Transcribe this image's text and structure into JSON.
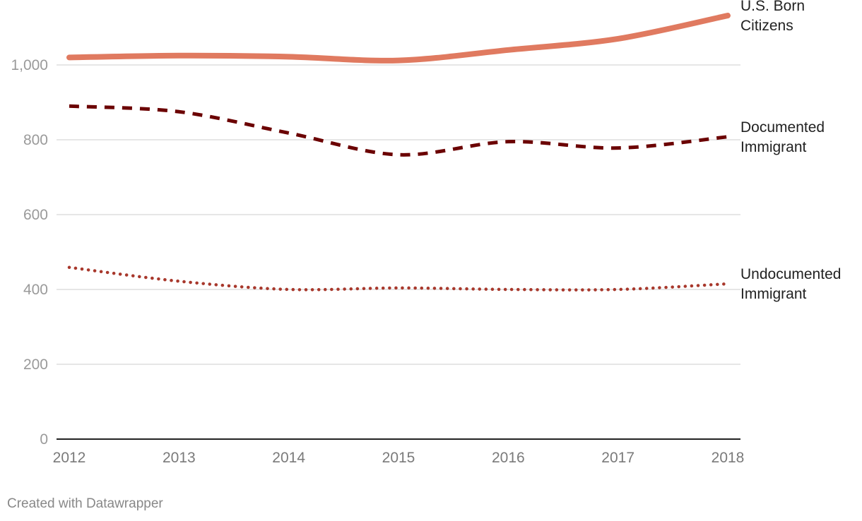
{
  "chart_data": {
    "type": "line",
    "title": "",
    "xlabel": "",
    "ylabel": "",
    "x": [
      "2012",
      "2013",
      "2014",
      "2015",
      "2016",
      "2017",
      "2018"
    ],
    "ylim": [
      0,
      1000
    ],
    "yticks": [
      0,
      200,
      400,
      600,
      800,
      1000
    ],
    "ytick_labels": [
      "0",
      "200",
      "400",
      "600",
      "800",
      "1,000"
    ],
    "grid": true,
    "legend": "inline-right",
    "series": [
      {
        "name": "U.S. Born Citizens",
        "label_lines": [
          "U.S. Born",
          "Citizens"
        ],
        "color": "#e07a60",
        "style": "solid",
        "values": [
          1020,
          1025,
          1022,
          1012,
          1040,
          1070,
          1132
        ]
      },
      {
        "name": "Documented Immigrant",
        "label_lines": [
          "Documented",
          "Immigrant"
        ],
        "color": "#6b0000",
        "style": "dashed",
        "values": [
          890,
          875,
          818,
          760,
          795,
          778,
          808
        ]
      },
      {
        "name": "Undocumented Immigrant",
        "label_lines": [
          "Undocumented",
          "Immigrant"
        ],
        "color": "#a8382c",
        "style": "dotted",
        "values": [
          459,
          422,
          400,
          404,
          400,
          400,
          415
        ]
      }
    ]
  },
  "footer": {
    "credit": "Created with Datawrapper"
  }
}
